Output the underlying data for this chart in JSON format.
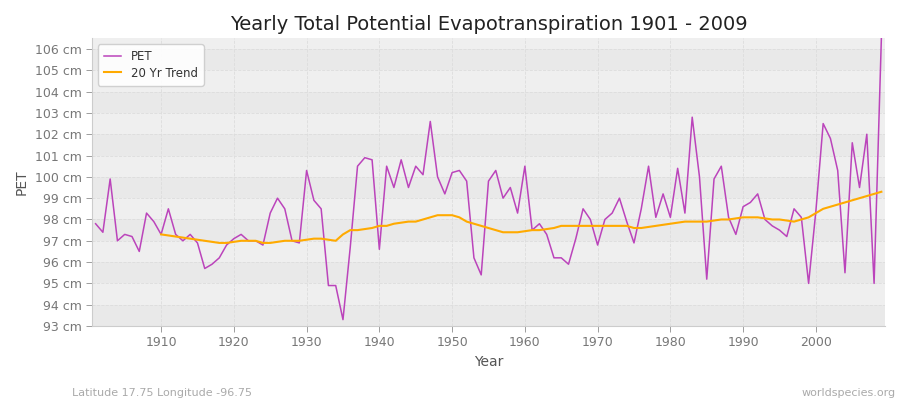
{
  "title": "Yearly Total Potential Evapotranspiration 1901 - 2009",
  "xlabel": "Year",
  "ylabel": "PET",
  "x_label_bottom": "Latitude 17.75 Longitude -96.75",
  "x_label_bottomright": "worldspecies.org",
  "legend_labels": [
    "PET",
    "20 Yr Trend"
  ],
  "pet_color": "#bb44bb",
  "trend_color": "#ffaa00",
  "bg_color": "#ffffff",
  "plot_bg_color": "#efefef",
  "ylim": [
    93,
    106.5
  ],
  "yticks": [
    93,
    94,
    95,
    96,
    97,
    98,
    99,
    100,
    101,
    102,
    103,
    104,
    105,
    106
  ],
  "years": [
    1901,
    1902,
    1903,
    1904,
    1905,
    1906,
    1907,
    1908,
    1909,
    1910,
    1911,
    1912,
    1913,
    1914,
    1915,
    1916,
    1917,
    1918,
    1919,
    1920,
    1921,
    1922,
    1923,
    1924,
    1925,
    1926,
    1927,
    1928,
    1929,
    1930,
    1931,
    1932,
    1933,
    1934,
    1935,
    1936,
    1937,
    1938,
    1939,
    1940,
    1941,
    1942,
    1943,
    1944,
    1945,
    1946,
    1947,
    1948,
    1949,
    1950,
    1951,
    1952,
    1953,
    1954,
    1955,
    1956,
    1957,
    1958,
    1959,
    1960,
    1961,
    1962,
    1963,
    1964,
    1965,
    1966,
    1967,
    1968,
    1969,
    1970,
    1971,
    1972,
    1973,
    1974,
    1975,
    1976,
    1977,
    1978,
    1979,
    1980,
    1981,
    1982,
    1983,
    1984,
    1985,
    1986,
    1987,
    1988,
    1989,
    1990,
    1991,
    1992,
    1993,
    1994,
    1995,
    1996,
    1997,
    1998,
    1999,
    2000,
    2001,
    2002,
    2003,
    2004,
    2005,
    2006,
    2007,
    2008,
    2009
  ],
  "pet_values": [
    97.8,
    97.4,
    99.9,
    97.0,
    97.3,
    97.2,
    96.5,
    98.3,
    97.9,
    97.3,
    98.5,
    97.3,
    97.0,
    97.3,
    96.9,
    95.7,
    95.9,
    96.2,
    96.8,
    97.1,
    97.3,
    97.0,
    97.0,
    96.8,
    98.3,
    99.0,
    98.5,
    97.0,
    96.9,
    100.3,
    98.9,
    98.5,
    94.9,
    94.9,
    93.3,
    96.7,
    100.5,
    100.9,
    100.8,
    96.6,
    100.5,
    99.5,
    100.8,
    99.5,
    100.5,
    100.1,
    102.6,
    100.0,
    99.2,
    100.2,
    100.3,
    99.8,
    96.2,
    95.4,
    99.8,
    100.3,
    99.0,
    99.5,
    98.3,
    100.5,
    97.5,
    97.8,
    97.3,
    96.2,
    96.2,
    95.9,
    97.1,
    98.5,
    98.0,
    96.8,
    98.0,
    98.3,
    99.0,
    97.9,
    96.9,
    98.5,
    100.5,
    98.1,
    99.2,
    98.1,
    100.4,
    98.3,
    102.8,
    100.0,
    95.2,
    99.9,
    100.5,
    98.1,
    97.3,
    98.6,
    98.8,
    99.2,
    98.0,
    97.7,
    97.5,
    97.2,
    98.5,
    98.1,
    95.0,
    98.4,
    102.5,
    101.8,
    100.3,
    95.5,
    101.6,
    99.5,
    102.0,
    95.0,
    106.5
  ],
  "trend_years": [
    1910,
    1911,
    1912,
    1913,
    1914,
    1915,
    1916,
    1917,
    1918,
    1919,
    1920,
    1921,
    1922,
    1923,
    1924,
    1925,
    1926,
    1927,
    1928,
    1929,
    1930,
    1931,
    1932,
    1933,
    1934,
    1935,
    1936,
    1937,
    1938,
    1939,
    1940,
    1941,
    1942,
    1943,
    1944,
    1945,
    1946,
    1947,
    1948,
    1949,
    1950,
    1951,
    1952,
    1953,
    1954,
    1955,
    1956,
    1957,
    1958,
    1959,
    1960,
    1961,
    1962,
    1963,
    1964,
    1965,
    1966,
    1967,
    1968,
    1969,
    1970,
    1971,
    1972,
    1973,
    1974,
    1975,
    1976,
    1977,
    1978,
    1979,
    1980,
    1981,
    1982,
    1983,
    1984,
    1985,
    1986,
    1987,
    1988,
    1989,
    1990,
    1991,
    1992,
    1993,
    1994,
    1995,
    1996,
    1997,
    1998,
    1999,
    2000,
    2001,
    2002,
    2003,
    2004,
    2005,
    2006,
    2007,
    2008,
    2009
  ],
  "trend_values": [
    97.3,
    97.25,
    97.2,
    97.15,
    97.1,
    97.05,
    97.0,
    96.95,
    96.9,
    96.9,
    96.95,
    97.0,
    97.0,
    97.0,
    96.9,
    96.9,
    96.95,
    97.0,
    97.0,
    97.0,
    97.05,
    97.1,
    97.1,
    97.05,
    97.0,
    97.3,
    97.5,
    97.5,
    97.55,
    97.6,
    97.7,
    97.7,
    97.8,
    97.85,
    97.9,
    97.9,
    98.0,
    98.1,
    98.2,
    98.2,
    98.2,
    98.1,
    97.9,
    97.8,
    97.7,
    97.6,
    97.5,
    97.4,
    97.4,
    97.4,
    97.45,
    97.5,
    97.5,
    97.55,
    97.6,
    97.7,
    97.7,
    97.7,
    97.7,
    97.7,
    97.7,
    97.7,
    97.7,
    97.7,
    97.7,
    97.6,
    97.6,
    97.65,
    97.7,
    97.75,
    97.8,
    97.85,
    97.9,
    97.9,
    97.9,
    97.9,
    97.95,
    98.0,
    98.0,
    98.05,
    98.1,
    98.1,
    98.1,
    98.05,
    98.0,
    98.0,
    97.95,
    97.9,
    98.0,
    98.1,
    98.3,
    98.5,
    98.6,
    98.7,
    98.8,
    98.9,
    99.0,
    99.1,
    99.2,
    99.3
  ],
  "grid_color": "#dddddd",
  "text_color": "#555555",
  "tick_color": "#777777",
  "title_fontsize": 14,
  "axis_label_fontsize": 10,
  "tick_fontsize": 9,
  "annotation_fontsize": 8
}
